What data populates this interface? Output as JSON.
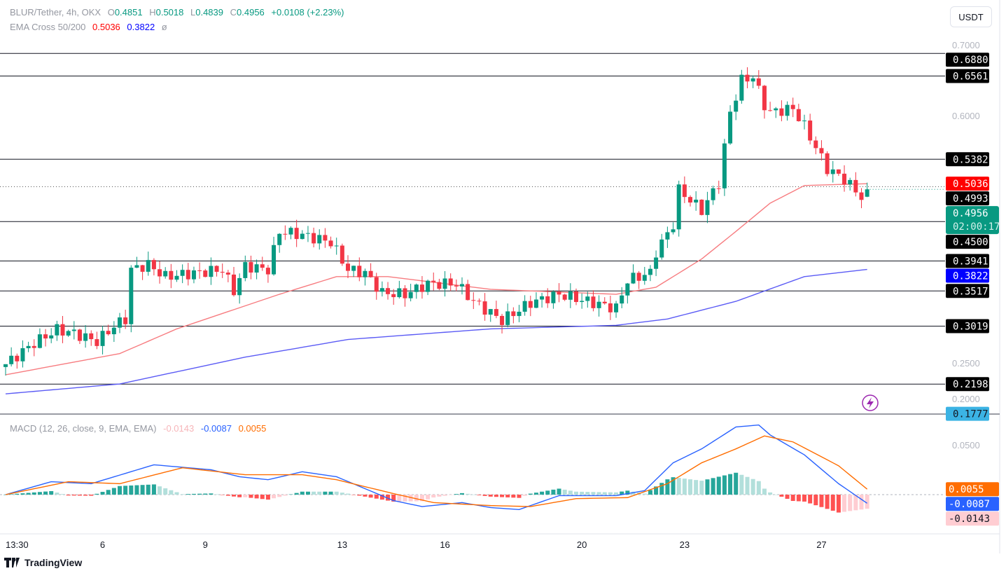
{
  "header": {
    "symbol": "BLUR/Tether, 4h, OKX",
    "o_label": "O",
    "o": "0.4851",
    "h_label": "H",
    "h": "0.5018",
    "l_label": "L",
    "l": "0.4839",
    "c_label": "C",
    "c": "0.4956",
    "change": "+0.0108 (+2.23%)",
    "ema_label": "EMA Cross 50/200",
    "ema50": "0.5036",
    "ema200": "0.3822",
    "ema_extra": "ø",
    "macd_label": "MACD (12, 26, close, 9, EMA, EMA)",
    "macd_hist": "-0.0143",
    "macd_line": "-0.0087",
    "macd_signal": "0.0055"
  },
  "currency_button": "USDT",
  "branding": "TradingView",
  "countdown": "02:00:17",
  "colors": {
    "up": "#089981",
    "down": "#f23645",
    "ema50": "#f77c80",
    "ema200": "#5b5bf5",
    "macd": "#2962ff",
    "signal": "#ff6d00",
    "level": "#131722"
  },
  "chart_data": [
    {
      "type": "candlestick",
      "title": "BLUR/Tether, 4h, OKX",
      "candle_count": 152,
      "ylim": [
        0.17,
        0.71
      ],
      "y_ticks": [
        "0.7000",
        "0.6000",
        "0.2500",
        "0.2000"
      ],
      "y_tick_values": [
        0.7,
        0.6,
        0.25,
        0.2
      ],
      "x_ticks": [
        "13:30",
        "6",
        "9",
        "13",
        "16",
        "20",
        "23",
        "27"
      ],
      "x_tick_candle_index": [
        2,
        17,
        35,
        59,
        77,
        101,
        119,
        143
      ],
      "close_path": [
        [
          0,
          0.248
        ],
        [
          5,
          0.278
        ],
        [
          9,
          0.297
        ],
        [
          12,
          0.292
        ],
        [
          16,
          0.28
        ],
        [
          19,
          0.302
        ],
        [
          21,
          0.312
        ],
        [
          22,
          0.382
        ],
        [
          25,
          0.389
        ],
        [
          28,
          0.372
        ],
        [
          33,
          0.377
        ],
        [
          38,
          0.382
        ],
        [
          40,
          0.352
        ],
        [
          42,
          0.387
        ],
        [
          46,
          0.382
        ],
        [
          48,
          0.436
        ],
        [
          52,
          0.431
        ],
        [
          57,
          0.421
        ],
        [
          60,
          0.382
        ],
        [
          63,
          0.377
        ],
        [
          66,
          0.349
        ],
        [
          70,
          0.347
        ],
        [
          74,
          0.362
        ],
        [
          79,
          0.362
        ],
        [
          82,
          0.337
        ],
        [
          87,
          0.31
        ],
        [
          92,
          0.335
        ],
        [
          97,
          0.347
        ],
        [
          102,
          0.337
        ],
        [
          107,
          0.327
        ],
        [
          109,
          0.367
        ],
        [
          113,
          0.377
        ],
        [
          114,
          0.407
        ],
        [
          117,
          0.446
        ],
        [
          118,
          0.495
        ],
        [
          122,
          0.466
        ],
        [
          125,
          0.505
        ],
        [
          127,
          0.605
        ],
        [
          129,
          0.65
        ],
        [
          131,
          0.655
        ],
        [
          133,
          0.615
        ],
        [
          134,
          0.605
        ],
        [
          138,
          0.61
        ],
        [
          140,
          0.585
        ],
        [
          142,
          0.555
        ],
        [
          144,
          0.525
        ],
        [
          147,
          0.51
        ],
        [
          150,
          0.485
        ],
        [
          151,
          0.4956
        ]
      ],
      "last_candle": {
        "open": 0.4851,
        "high": 0.5018,
        "low": 0.4839,
        "close": 0.4956
      },
      "series": [
        {
          "name": "EMA 50",
          "value": "0.5036",
          "points": [
            [
              0,
              0.233
            ],
            [
              20,
              0.263
            ],
            [
              30,
              0.298
            ],
            [
              48,
              0.347
            ],
            [
              58,
              0.372
            ],
            [
              67,
              0.372
            ],
            [
              85,
              0.354
            ],
            [
              107,
              0.347
            ],
            [
              114,
              0.357
            ],
            [
              122,
              0.397
            ],
            [
              128,
              0.436
            ],
            [
              134,
              0.476
            ],
            [
              140,
              0.501
            ],
            [
              151,
              0.5036
            ]
          ]
        },
        {
          "name": "EMA 200",
          "value": "0.3822",
          "points": [
            [
              0,
              0.206
            ],
            [
              20,
              0.22
            ],
            [
              42,
              0.258
            ],
            [
              60,
              0.283
            ],
            [
              85,
              0.298
            ],
            [
              107,
              0.303
            ],
            [
              116,
              0.312
            ],
            [
              128,
              0.337
            ],
            [
              140,
              0.372
            ],
            [
              151,
              0.3822
            ]
          ]
        }
      ],
      "levels": [
        {
          "value": "0.6880"
        },
        {
          "value": "0.6561"
        },
        {
          "value": "0.5382"
        },
        {
          "value": "0.4993",
          "style": "dotted"
        },
        {
          "value": "0.4500"
        },
        {
          "value": "0.3941"
        },
        {
          "value": "0.3517"
        },
        {
          "value": "0.3019"
        },
        {
          "value": "0.2198"
        }
      ],
      "price_labels": [
        {
          "text": "0.6880",
          "bg": "#000000",
          "fg": "#ffffff",
          "value": 0.688
        },
        {
          "text": "0.6561",
          "bg": "#000000",
          "fg": "#ffffff",
          "value": 0.6561
        },
        {
          "text": "0.5382",
          "bg": "#000000",
          "fg": "#ffffff",
          "value": 0.5382
        },
        {
          "text": "0.5036",
          "bg": "#ff0000",
          "fg": "#ffffff",
          "value": 0.5036
        },
        {
          "text": "0.4993",
          "bg": "#000000",
          "fg": "#ffffff",
          "value": 0.4993
        },
        {
          "text": "0.4500",
          "bg": "#000000",
          "fg": "#ffffff",
          "value": 0.45
        },
        {
          "text": "0.3941",
          "bg": "#000000",
          "fg": "#ffffff",
          "value": 0.3941
        },
        {
          "text": "0.3822",
          "bg": "#0000ff",
          "fg": "#ffffff",
          "value": 0.3822
        },
        {
          "text": "0.3517",
          "bg": "#000000",
          "fg": "#ffffff",
          "value": 0.3517
        },
        {
          "text": "0.3019",
          "bg": "#000000",
          "fg": "#ffffff",
          "value": 0.3019
        },
        {
          "text": "0.2198",
          "bg": "#000000",
          "fg": "#ffffff",
          "value": 0.2198
        },
        {
          "text": "0.1777",
          "bg": "#3bb3e4",
          "fg": "#131722",
          "value": 0.1777
        }
      ],
      "current_price": "0.4956"
    },
    {
      "type": "line",
      "title": "MACD (12, 26, close, 9, EMA, EMA)",
      "y_ticks": [
        "0.0500"
      ],
      "y_tick_values": [
        0.05
      ],
      "series": [
        {
          "name": "MACD",
          "value": "-0.0087",
          "points": [
            [
              0,
              0
            ],
            [
              8,
              0.013
            ],
            [
              15,
              0.011
            ],
            [
              26,
              0.03
            ],
            [
              36,
              0.025
            ],
            [
              41,
              0.018
            ],
            [
              46,
              0.015
            ],
            [
              52,
              0.023
            ],
            [
              58,
              0.018
            ],
            [
              68,
              -0.006
            ],
            [
              73,
              -0.012
            ],
            [
              80,
              -0.008
            ],
            [
              85,
              -0.013
            ],
            [
              90,
              -0.015
            ],
            [
              97,
              -0.001
            ],
            [
              107,
              -0.001
            ],
            [
              112,
              0.004
            ],
            [
              117,
              0.032
            ],
            [
              122,
              0.046
            ],
            [
              128,
              0.068
            ],
            [
              132,
              0.07
            ],
            [
              134,
              0.06
            ],
            [
              140,
              0.04
            ],
            [
              146,
              0.011
            ],
            [
              151,
              -0.0087
            ]
          ]
        },
        {
          "name": "Signal",
          "value": "0.0055",
          "points": [
            [
              0,
              0
            ],
            [
              11,
              0.013
            ],
            [
              20,
              0.011
            ],
            [
              31,
              0.027
            ],
            [
              42,
              0.02
            ],
            [
              52,
              0.02
            ],
            [
              58,
              0.015
            ],
            [
              68,
              0.001
            ],
            [
              75,
              -0.008
            ],
            [
              85,
              -0.011
            ],
            [
              92,
              -0.012
            ],
            [
              100,
              -0.004
            ],
            [
              109,
              -0.003
            ],
            [
              116,
              0.011
            ],
            [
              122,
              0.032
            ],
            [
              128,
              0.046
            ],
            [
              133,
              0.059
            ],
            [
              138,
              0.053
            ],
            [
              146,
              0.029
            ],
            [
              151,
              0.0055
            ]
          ]
        },
        {
          "name": "Histogram",
          "value": "-0.0143",
          "derived": "MACD - Signal"
        }
      ]
    }
  ]
}
